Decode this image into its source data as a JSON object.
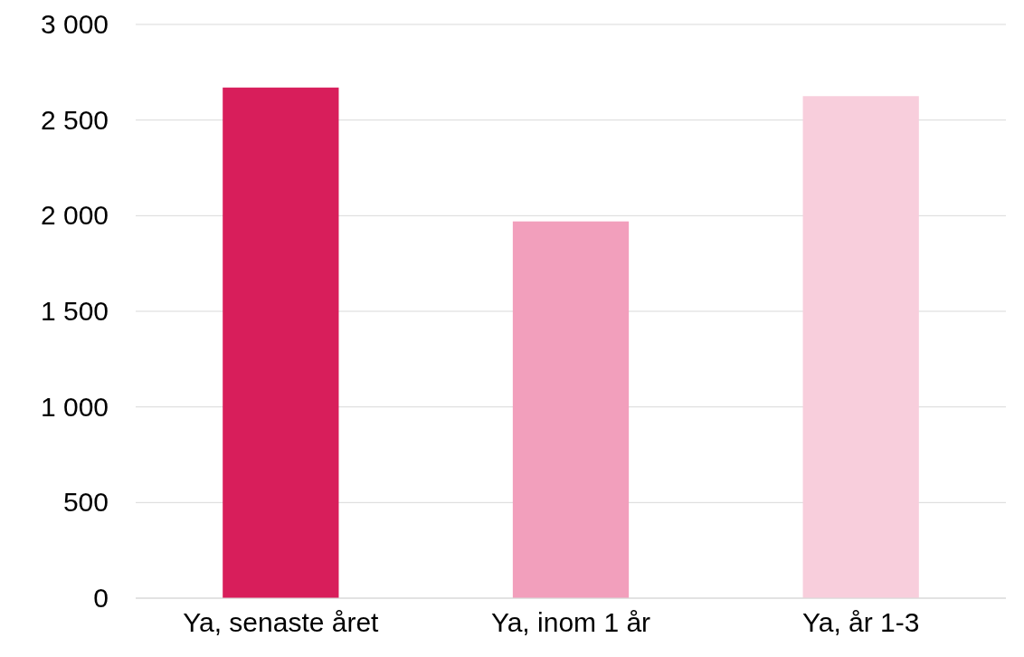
{
  "chart_data": {
    "type": "bar",
    "categories": [
      "Ya, senaste året",
      "Ya, inom 1 år",
      "Ya, år 1-3"
    ],
    "values": [
      2670,
      1970,
      2625
    ],
    "colors": [
      "#d81e5b",
      "#f29fbc",
      "#f8cedc"
    ],
    "ylim": [
      0,
      3000
    ],
    "yticks": [
      0,
      500,
      {
        "value": 1000,
        "label": "1 000"
      },
      {
        "value": 1500,
        "label": "1 500"
      },
      {
        "value": 2000,
        "label": "2 000"
      },
      {
        "value": 2500,
        "label": "2 500"
      },
      {
        "value": 3000,
        "label": "3 000"
      }
    ],
    "grid": "y"
  }
}
